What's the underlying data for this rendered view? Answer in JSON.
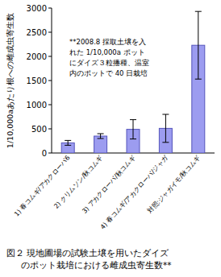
{
  "chart_data": {
    "type": "bar",
    "title": [
      "図２ 現地圃場の試験土壌を用いたダイズ",
      "のポット栽培における雌成虫寄生数**"
    ],
    "y_label": "1/10,000aあたり根への雌成虫寄生数",
    "annotation": [
      "**2008.8 採取土壌を入",
      "れた 1/10,000a ポット",
      "にダイズ３粒播種、温室",
      "内のポットで 40 日栽培"
    ],
    "categories": [
      "1) 春コムギ/アカクローバ6",
      "2) クリムソン/秋コムギ",
      "3) アカクローバ/秋コムギ",
      "4) 春コムギ/アカクローバ/ジャガ",
      "対照:ジャガイモ/秋コムギ"
    ],
    "values": [
      210,
      350,
      490,
      510,
      2230
    ],
    "errors": [
      50,
      50,
      200,
      290,
      700
    ],
    "color": "#9c9cf0",
    "ylim": [
      0,
      3000
    ],
    "yticks": [
      0,
      500,
      1000,
      1500,
      2000,
      2500,
      3000
    ],
    "grid": false
  }
}
